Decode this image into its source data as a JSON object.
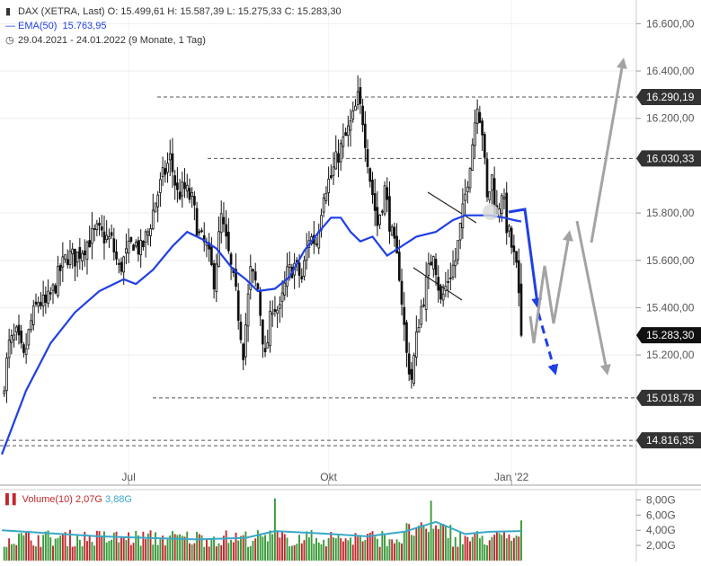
{
  "header": {
    "line1": "DAX (XETRA, Last)  O: 15.499,61  H: 15.587,39  L: 15.275,33  C: 15.283,30",
    "line2_name": "EMA(50)",
    "line2_value": "15.763,95",
    "line3": "29.04.2021 - 24.01.2022   (9 Monate, 1 Tag)"
  },
  "volume_header": {
    "name": "Volume(10)",
    "value1": "2,07G",
    "value2": "3,88G"
  },
  "colors": {
    "up": "#ffffff",
    "down": "#111111",
    "ema": "#1f3fe6",
    "arrow_blue": "#1f3fe6",
    "arrow_gray": "#a3a3a3",
    "vol_up": "#3a9a3a",
    "vol_down": "#c0282d",
    "vol_avg": "#3aa8c8"
  },
  "chart_data": [
    {
      "type": "candlestick",
      "title": "DAX (XETRA, Last)",
      "period": "29.04.2021 - 24.01.2022",
      "last": {
        "open": 15499.61,
        "high": 15587.39,
        "low": 15275.33,
        "close": 15283.3
      },
      "ylim": [
        14650,
        16700
      ],
      "y_ticks": [
        "15.200,00",
        "15.400,00",
        "15.600,00",
        "15.800,00",
        "16.200,00",
        "16.400,00",
        "16.600,00"
      ],
      "x_ticks": [
        "Jul",
        "Okt",
        "Jan '22"
      ],
      "price_labels": [
        "16.290,19",
        "16.030,33",
        "15.283,30",
        "15.018,78",
        "14.816,35"
      ],
      "levels": [
        16290.19,
        16030.33,
        15018.78,
        14816.35
      ],
      "close_path": [
        [
          0,
          15020
        ],
        [
          3,
          15240
        ],
        [
          6,
          15280
        ],
        [
          9,
          15180
        ],
        [
          12,
          15340
        ],
        [
          15,
          15430
        ],
        [
          18,
          15410
        ],
        [
          21,
          15470
        ],
        [
          24,
          15560
        ],
        [
          27,
          15620
        ],
        [
          30,
          15610
        ],
        [
          33,
          15650
        ],
        [
          36,
          15690
        ],
        [
          39,
          15720
        ],
        [
          42,
          15700
        ],
        [
          45,
          15680
        ],
        [
          48,
          15560
        ],
        [
          51,
          15620
        ],
        [
          54,
          15680
        ],
        [
          57,
          15640
        ],
        [
          60,
          15720
        ],
        [
          63,
          15850
        ],
        [
          66,
          15950
        ],
        [
          69,
          16030
        ],
        [
          72,
          15880
        ],
        [
          75,
          15900
        ],
        [
          78,
          15850
        ],
        [
          81,
          15700
        ],
        [
          84,
          15650
        ],
        [
          87,
          15520
        ],
        [
          90,
          15780
        ],
        [
          93,
          15620
        ],
        [
          96,
          15450
        ],
        [
          99,
          15220
        ],
        [
          102,
          15550
        ],
        [
          105,
          15480
        ],
        [
          108,
          15180
        ],
        [
          111,
          15420
        ],
        [
          114,
          15380
        ],
        [
          117,
          15540
        ],
        [
          120,
          15580
        ],
        [
          123,
          15520
        ],
        [
          126,
          15700
        ],
        [
          129,
          15680
        ],
        [
          132,
          15900
        ],
        [
          135,
          15950
        ],
        [
          138,
          16050
        ],
        [
          141,
          16120
        ],
        [
          144,
          16200
        ],
        [
          146,
          16280
        ],
        [
          148,
          16200
        ],
        [
          151,
          15950
        ],
        [
          154,
          15750
        ],
        [
          157,
          15900
        ],
        [
          160,
          15700
        ],
        [
          163,
          15550
        ],
        [
          166,
          15200
        ],
        [
          168,
          15100
        ],
        [
          171,
          15350
        ],
        [
          174,
          15500
        ],
        [
          177,
          15650
        ],
        [
          180,
          15420
        ],
        [
          183,
          15520
        ],
        [
          186,
          15600
        ],
        [
          189,
          15800
        ],
        [
          191,
          15950
        ],
        [
          193,
          16100
        ],
        [
          195,
          16280
        ],
        [
          197,
          16150
        ],
        [
          199,
          15850
        ],
        [
          201,
          15950
        ],
        [
          203,
          15780
        ],
        [
          205,
          15900
        ],
        [
          207,
          15750
        ],
        [
          209,
          15660
        ],
        [
          211,
          15560
        ],
        [
          213,
          15283.3
        ]
      ],
      "ema_path": [
        [
          0,
          14780
        ],
        [
          10,
          15050
        ],
        [
          20,
          15250
        ],
        [
          30,
          15380
        ],
        [
          40,
          15470
        ],
        [
          50,
          15520
        ],
        [
          55,
          15500
        ],
        [
          62,
          15560
        ],
        [
          70,
          15660
        ],
        [
          76,
          15720
        ],
        [
          82,
          15690
        ],
        [
          88,
          15650
        ],
        [
          95,
          15560
        ],
        [
          100,
          15520
        ],
        [
          105,
          15470
        ],
        [
          112,
          15480
        ],
        [
          118,
          15530
        ],
        [
          124,
          15640
        ],
        [
          130,
          15720
        ],
        [
          135,
          15780
        ],
        [
          139,
          15780
        ],
        [
          143,
          15720
        ],
        [
          147,
          15680
        ],
        [
          152,
          15700
        ],
        [
          158,
          15620
        ],
        [
          164,
          15660
        ],
        [
          170,
          15700
        ],
        [
          178,
          15720
        ],
        [
          185,
          15770
        ],
        [
          190,
          15790
        ],
        [
          200,
          15790
        ],
        [
          206,
          15780
        ],
        [
          210,
          15770
        ],
        [
          213,
          15763.95
        ]
      ],
      "volume": {
        "ylim": [
          0,
          9
        ],
        "y_ticks": [
          "8,00G",
          "6,00G",
          "4,00G",
          "2,00G"
        ],
        "highlight_days": [
          [
            112,
            8.2
          ],
          [
            176,
            7.9
          ],
          [
            213,
            5.3
          ]
        ],
        "avg_path": [
          [
            0,
            4.0
          ],
          [
            20,
            3.6
          ],
          [
            40,
            3.2
          ],
          [
            60,
            3.0
          ],
          [
            80,
            2.8
          ],
          [
            100,
            3.0
          ],
          [
            112,
            3.9
          ],
          [
            130,
            3.6
          ],
          [
            150,
            3.2
          ],
          [
            165,
            3.8
          ],
          [
            178,
            5.1
          ],
          [
            190,
            3.5
          ],
          [
            200,
            3.8
          ],
          [
            213,
            3.9
          ]
        ]
      }
    }
  ]
}
